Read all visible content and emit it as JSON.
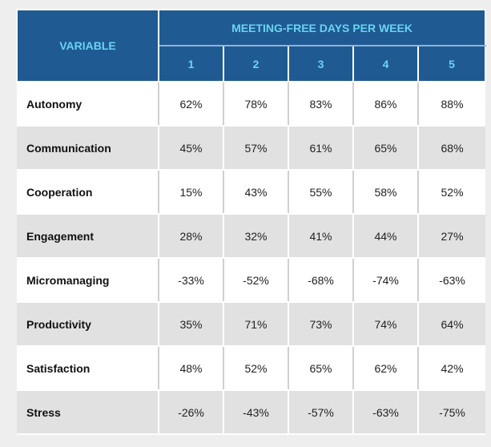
{
  "table": {
    "variable_header": "VARIABLE",
    "group_header": "MEETING-FREE DAYS PER WEEK",
    "day_headers": [
      "1",
      "2",
      "3",
      "4",
      "5"
    ],
    "rows": [
      {
        "label": "Autonomy",
        "values": [
          "62%",
          "78%",
          "83%",
          "86%",
          "88%"
        ]
      },
      {
        "label": "Communication",
        "values": [
          "45%",
          "57%",
          "61%",
          "65%",
          "68%"
        ]
      },
      {
        "label": "Cooperation",
        "values": [
          "15%",
          "43%",
          "55%",
          "58%",
          "52%"
        ]
      },
      {
        "label": "Engagement",
        "values": [
          "28%",
          "32%",
          "41%",
          "44%",
          "27%"
        ]
      },
      {
        "label": "Micromanaging",
        "values": [
          "-33%",
          "-52%",
          "-68%",
          "-74%",
          "-63%"
        ]
      },
      {
        "label": "Productivity",
        "values": [
          "35%",
          "71%",
          "73%",
          "74%",
          "64%"
        ]
      },
      {
        "label": "Satisfaction",
        "values": [
          "48%",
          "52%",
          "65%",
          "62%",
          "42%"
        ]
      },
      {
        "label": "Stress",
        "values": [
          "-26%",
          "-43%",
          "-57%",
          "-63%",
          "-75%"
        ]
      }
    ]
  },
  "colors": {
    "header_bg": "#1f5a93",
    "header_text": "#6ad3f0",
    "row_alt_bg": "#e1e1e1"
  }
}
